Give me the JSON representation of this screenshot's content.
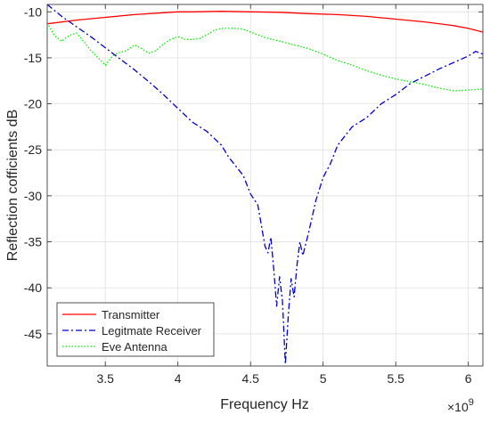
{
  "chart_data": {
    "type": "line",
    "title": "",
    "xlabel": "Frequency Hz",
    "ylabel": "Reflection cofficients dB",
    "x_exponent_label": "×10",
    "x_exponent_power": "9",
    "xlim": [
      3.1,
      6.1
    ],
    "ylim": [
      -48.5,
      -9.2
    ],
    "x_ticks": [
      3.5,
      4,
      4.5,
      5,
      5.5,
      6
    ],
    "x_tick_labels": [
      "3.5",
      "4",
      "4.5",
      "5",
      "5.5",
      "6"
    ],
    "y_ticks": [
      -45,
      -40,
      -35,
      -30,
      -25,
      -20,
      -15,
      -10
    ],
    "y_tick_labels": [
      "-45",
      "-40",
      "-35",
      "-30",
      "-25",
      "-20",
      "-15",
      "-10"
    ],
    "grid": true,
    "legend_position": "bottom-left",
    "series": [
      {
        "name": "Transmitter",
        "color": "#ff0000",
        "dash": "solid",
        "x": [
          3.1,
          3.3,
          3.5,
          3.7,
          3.9,
          4.0,
          4.1,
          4.3,
          4.5,
          4.7,
          4.9,
          5.1,
          5.3,
          5.5,
          5.7,
          5.9,
          6.0,
          6.1
        ],
        "y": [
          -11.3,
          -10.9,
          -10.6,
          -10.3,
          -10.1,
          -10.0,
          -10.0,
          -9.95,
          -10.0,
          -10.05,
          -10.2,
          -10.3,
          -10.5,
          -10.8,
          -11.1,
          -11.5,
          -11.8,
          -12.2
        ]
      },
      {
        "name": "Legitmate Receiver",
        "color": "#0000cc",
        "dash": "dashdot",
        "x": [
          3.1,
          3.2,
          3.3,
          3.4,
          3.5,
          3.6,
          3.7,
          3.8,
          3.9,
          4.0,
          4.1,
          4.2,
          4.3,
          4.35,
          4.4,
          4.45,
          4.5,
          4.55,
          4.6,
          4.62,
          4.64,
          4.66,
          4.68,
          4.7,
          4.72,
          4.74,
          4.76,
          4.78,
          4.8,
          4.82,
          4.84,
          4.86,
          4.9,
          4.95,
          5.0,
          5.05,
          5.1,
          5.2,
          5.3,
          5.4,
          5.5,
          5.6,
          5.7,
          5.8,
          5.9,
          6.0,
          6.05,
          6.1
        ],
        "y": [
          -9.2,
          -10.5,
          -11.6,
          -12.7,
          -13.9,
          -15.1,
          -16.3,
          -17.6,
          -19.0,
          -20.5,
          -22.0,
          -23.0,
          -24.5,
          -25.8,
          -26.8,
          -27.8,
          -29.8,
          -31.0,
          -35.5,
          -36.2,
          -34.5,
          -38.0,
          -42.0,
          -38.8,
          -41.5,
          -48.3,
          -43.0,
          -39.0,
          -41.0,
          -37.5,
          -35.0,
          -36.5,
          -34.0,
          -30.5,
          -28.0,
          -26.5,
          -24.5,
          -22.5,
          -21.5,
          -20.0,
          -19.0,
          -17.8,
          -17.0,
          -16.2,
          -15.5,
          -14.8,
          -14.3,
          -14.6
        ]
      },
      {
        "name": "Eve Antenna",
        "color": "#00ee00",
        "dash": "dotted",
        "x": [
          3.1,
          3.15,
          3.2,
          3.25,
          3.3,
          3.35,
          3.4,
          3.45,
          3.5,
          3.55,
          3.6,
          3.65,
          3.7,
          3.75,
          3.8,
          3.85,
          3.9,
          3.95,
          4.0,
          4.05,
          4.1,
          4.15,
          4.2,
          4.25,
          4.3,
          4.35,
          4.4,
          4.45,
          4.5,
          4.6,
          4.7,
          4.8,
          4.9,
          5.0,
          5.1,
          5.2,
          5.3,
          5.4,
          5.5,
          5.6,
          5.7,
          5.8,
          5.9,
          6.0,
          6.1
        ],
        "y": [
          -11.2,
          -12.6,
          -13.2,
          -12.6,
          -12.3,
          -13.2,
          -14.2,
          -15.0,
          -15.8,
          -14.8,
          -14.4,
          -14.2,
          -13.6,
          -14.0,
          -14.5,
          -14.2,
          -13.5,
          -13.0,
          -12.7,
          -13.0,
          -13.0,
          -12.9,
          -12.5,
          -12.0,
          -11.8,
          -11.8,
          -11.8,
          -11.9,
          -12.2,
          -12.8,
          -13.2,
          -13.6,
          -14.0,
          -14.6,
          -15.3,
          -15.8,
          -16.4,
          -16.9,
          -17.3,
          -17.6,
          -17.9,
          -18.3,
          -18.6,
          -18.5,
          -18.4
        ]
      }
    ]
  }
}
